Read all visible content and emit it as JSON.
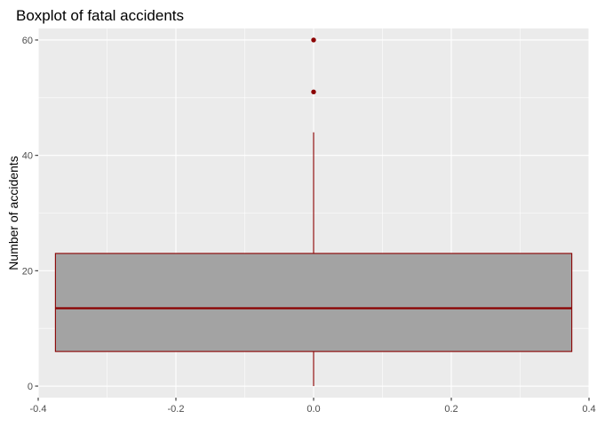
{
  "chart_data": {
    "type": "boxplot",
    "title": "Boxplot of fatal accidents",
    "xlabel": "",
    "ylabel": "Number of accidents",
    "xlim": [
      -0.4,
      0.4
    ],
    "ylim": [
      -2,
      62
    ],
    "x_ticks": [
      -0.4,
      -0.2,
      0.0,
      0.2,
      0.4
    ],
    "x_tick_labels": [
      "-0.4",
      "-0.2",
      "0.0",
      "0.2",
      "0.4"
    ],
    "y_ticks": [
      0,
      20,
      40,
      60
    ],
    "y_tick_labels": [
      "0",
      "20",
      "40",
      "60"
    ],
    "grid": true,
    "colors": {
      "panel": "#ebebeb",
      "grid": "#ffffff",
      "box_fill": "#a3a3a3",
      "box_stroke": "#8b0000",
      "outlier": "#8b0000"
    },
    "box": {
      "x_center": 0.0,
      "x_left": -0.375,
      "x_right": 0.375,
      "min": 0,
      "q1": 6,
      "median": 13.5,
      "q3": 23,
      "max": 44,
      "outliers": [
        51,
        60
      ]
    }
  }
}
